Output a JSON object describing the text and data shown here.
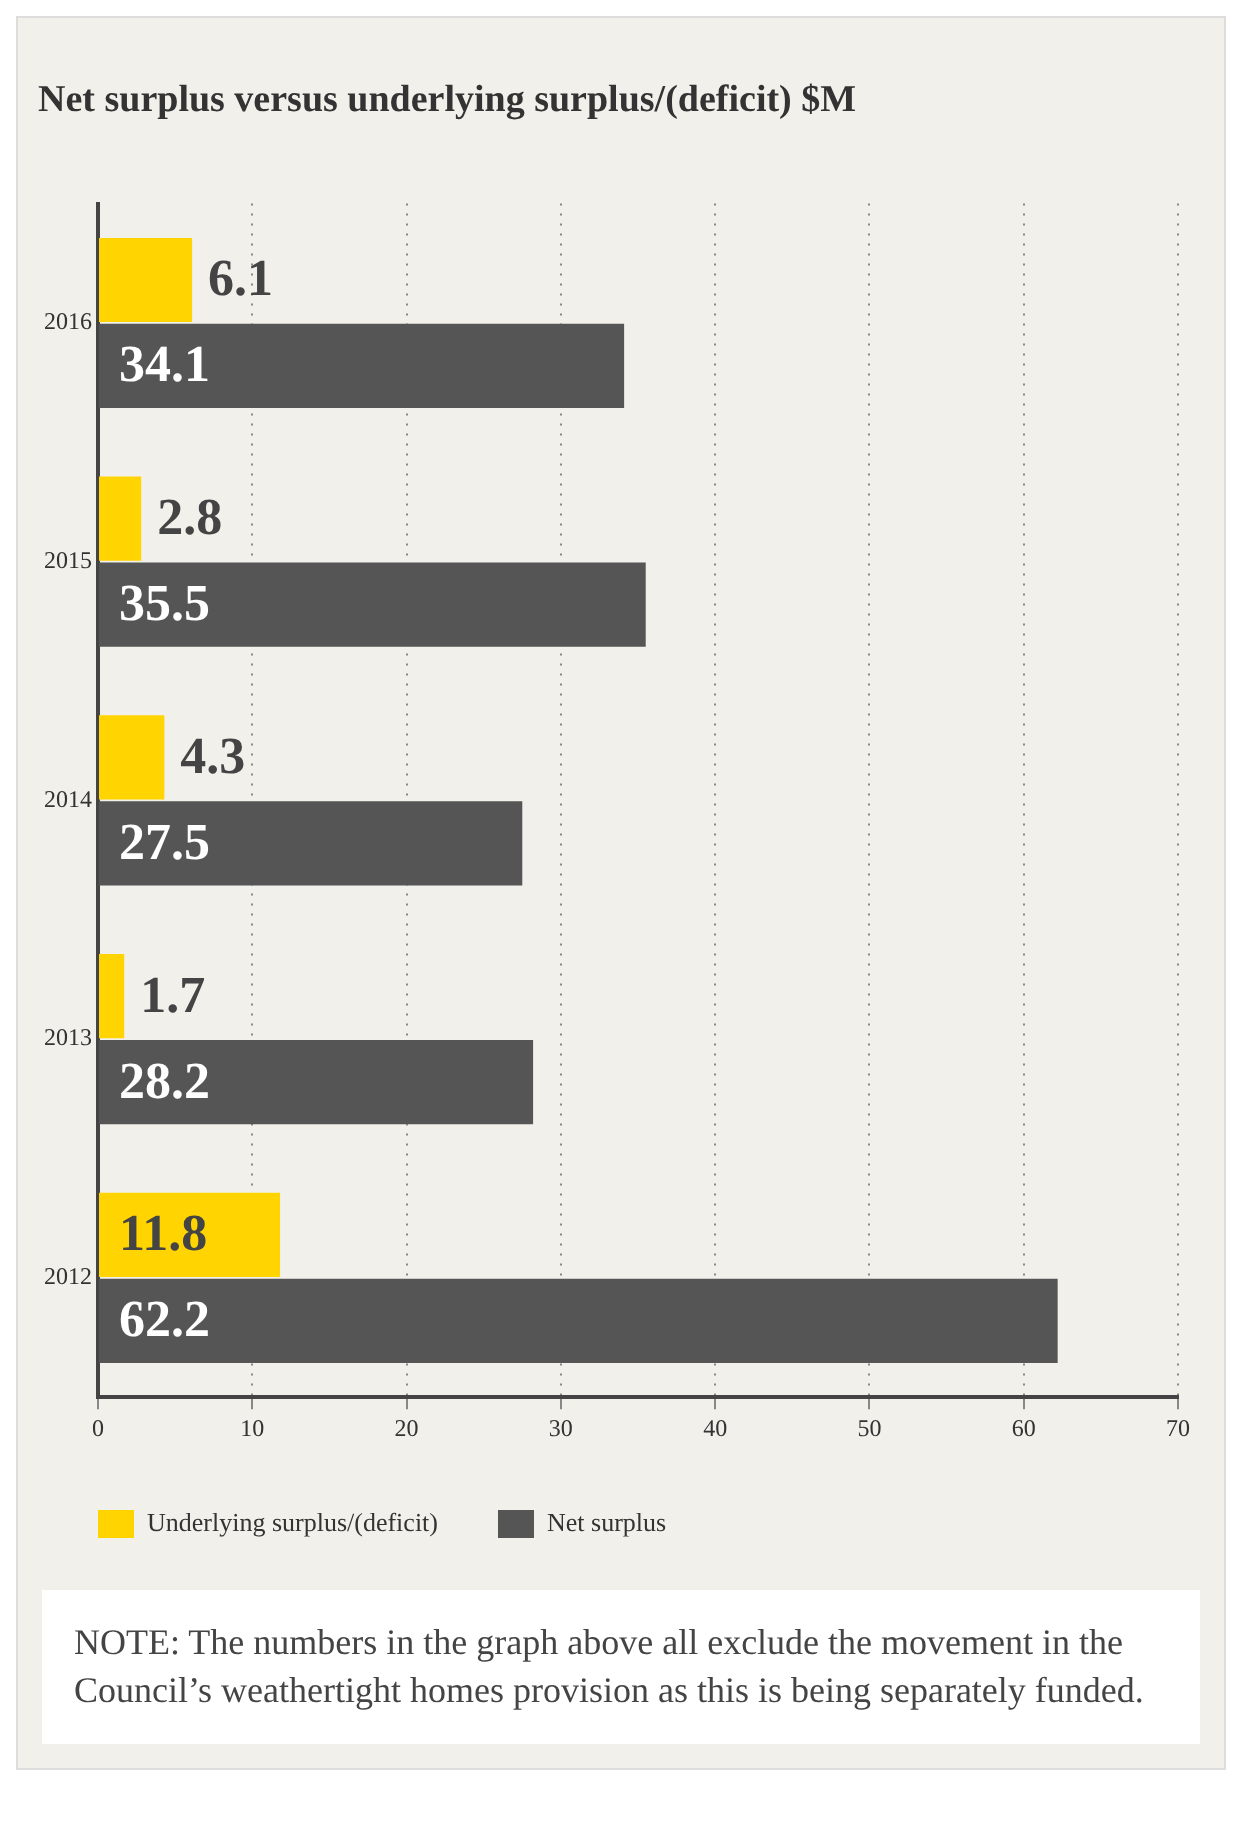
{
  "chart_data": {
    "type": "bar",
    "orientation": "horizontal",
    "title": "Net surplus versus underlying surplus/(deficit) $M",
    "categories": [
      "2016",
      "2015",
      "2014",
      "2013",
      "2012"
    ],
    "series": [
      {
        "name": "Underlying surplus/(deficit)",
        "color": "#ffd400",
        "values": [
          6.1,
          2.8,
          4.3,
          1.7,
          11.8
        ]
      },
      {
        "name": "Net surplus",
        "color": "#555555",
        "values": [
          34.1,
          35.5,
          27.5,
          28.2,
          62.2
        ]
      }
    ],
    "xlim": [
      0,
      70
    ],
    "xticks": [
      0,
      10,
      20,
      30,
      40,
      50,
      60,
      70
    ],
    "grid": "x",
    "legend": "bottom",
    "data_labels": true,
    "annotations": [
      "NOTE: The numbers in the graph above all exclude the movement in the Council’s weathertight homes provision as this is being separately funded."
    ]
  }
}
